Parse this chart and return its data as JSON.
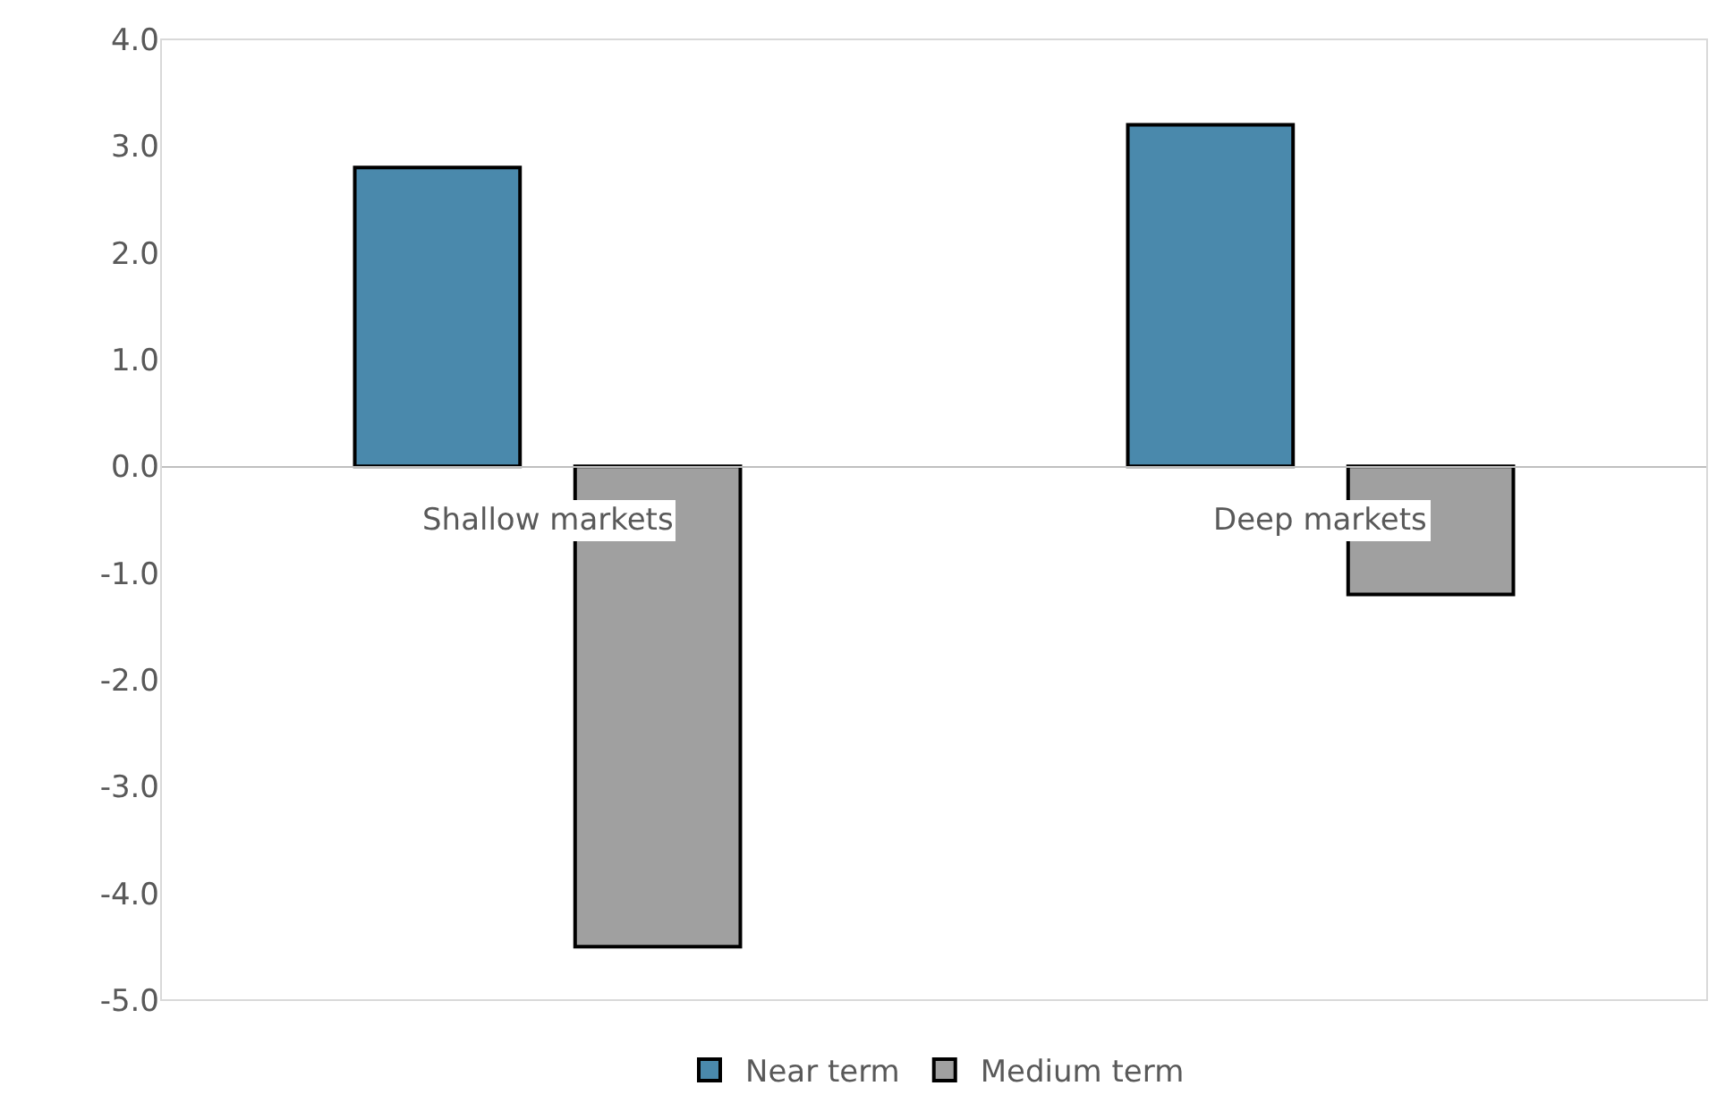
{
  "chart_data": {
    "type": "bar",
    "categories": [
      "Shallow markets",
      "Deep markets"
    ],
    "series": [
      {
        "name": "Near term",
        "color": "#4a89ac",
        "values": [
          2.8,
          3.2
        ]
      },
      {
        "name": "Medium term",
        "color": "#a0a0a0",
        "values": [
          -4.5,
          -1.2
        ]
      }
    ],
    "ylim": [
      -5,
      4
    ],
    "yticks": [
      {
        "value": -5,
        "label": "-5.0"
      },
      {
        "value": -4,
        "label": "-4.0"
      },
      {
        "value": -3,
        "label": "-3.0"
      },
      {
        "value": -2,
        "label": "-2.0"
      },
      {
        "value": -1,
        "label": "-1.0"
      },
      {
        "value": 0,
        "label": "0.0"
      },
      {
        "value": 1,
        "label": "1.0"
      },
      {
        "value": 2,
        "label": "2.0"
      },
      {
        "value": 3,
        "label": "3.0"
      },
      {
        "value": 4,
        "label": "4.0"
      }
    ],
    "grid": false,
    "legend": "bottom"
  }
}
